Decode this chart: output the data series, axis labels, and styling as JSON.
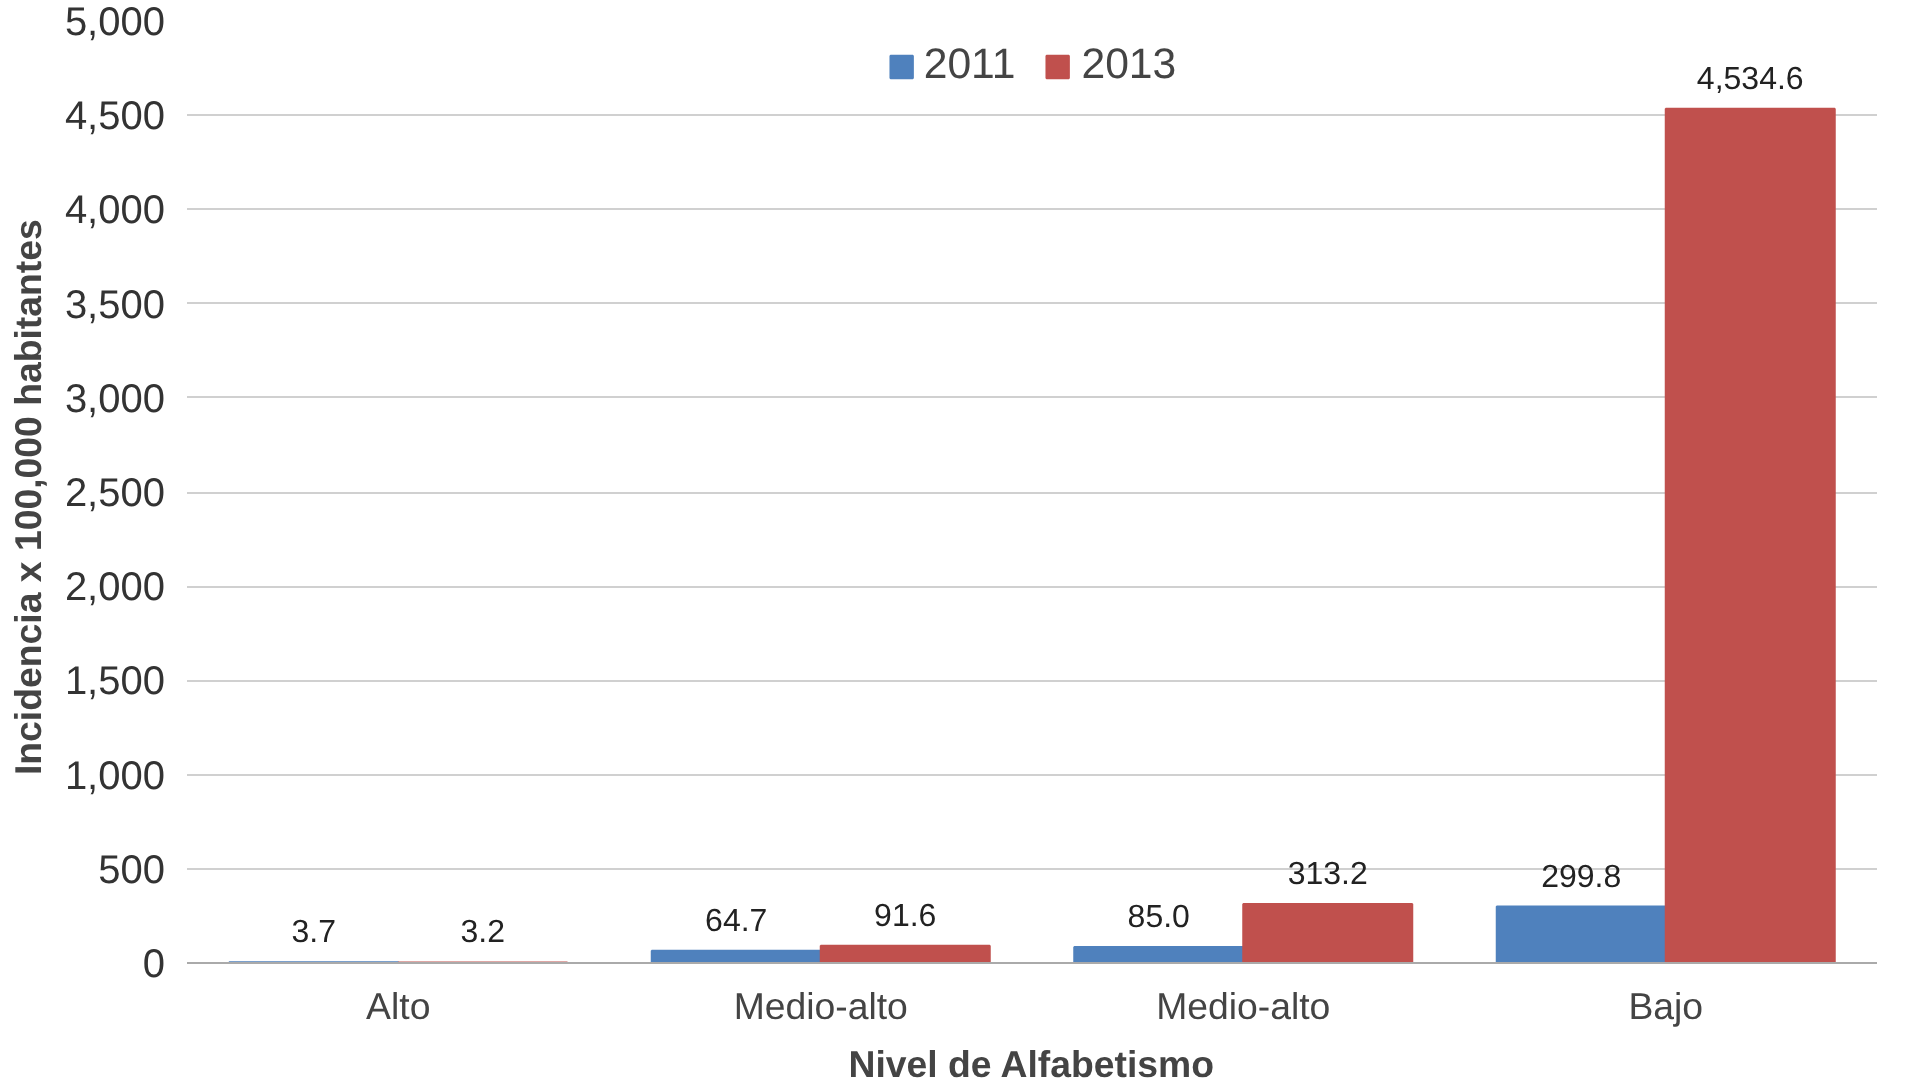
{
  "chart_data": {
    "type": "bar",
    "xlabel": "Nivel de Alfabetismo",
    "ylabel": "Incidencia x  100,000 habitantes",
    "categories": [
      "Alto",
      "Medio-alto",
      "Medio-alto",
      "Bajo"
    ],
    "series": [
      {
        "name": "2011",
        "color": "#4f81bd",
        "values": [
          3.7,
          64.7,
          85.0,
          299.8
        ],
        "value_labels": [
          "3.7",
          "64.7",
          "85.0",
          "299.8"
        ]
      },
      {
        "name": "2013",
        "color": "#c0504d",
        "values": [
          3.2,
          91.6,
          313.2,
          4534.6
        ],
        "value_labels": [
          "3.2",
          "91.6",
          "313.2",
          "4,534.6"
        ]
      }
    ],
    "ylim": [
      0,
      5000
    ],
    "yticks": [
      0,
      500,
      {
        "value": 1000,
        "label": "1,000"
      },
      {
        "value": 1500,
        "label": "1,500"
      },
      {
        "value": 2000,
        "label": "2,000"
      },
      {
        "value": 2500,
        "label": "2,500"
      },
      {
        "value": 3000,
        "label": "3,000"
      },
      {
        "value": 3500,
        "label": "3,500"
      },
      {
        "value": 4000,
        "label": "4,000"
      },
      {
        "value": 4500,
        "label": "4,500"
      },
      {
        "value": 5000,
        "label": "5,000"
      }
    ],
    "grid": "y",
    "legend": "top"
  }
}
